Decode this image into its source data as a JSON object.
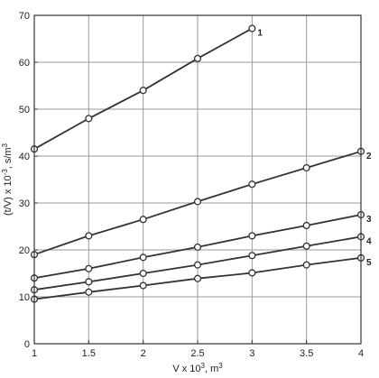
{
  "chart_data": {
    "type": "line",
    "xlabel_parts": {
      "base": "V x 10",
      "exp": "3",
      "unit": ", m",
      "unit_exp": "3"
    },
    "ylabel_parts": {
      "base": "(t/V) x 10",
      "exp": "-3",
      "unit": ", s/m",
      "unit_exp": "3"
    },
    "xlim": [
      1,
      4
    ],
    "ylim": [
      0,
      70
    ],
    "xticks": [
      "1",
      "1.5",
      "2",
      "2.5",
      "3",
      "3.5",
      "4"
    ],
    "yticks": [
      "0",
      "10",
      "20",
      "30",
      "40",
      "50",
      "60",
      "70"
    ],
    "grid": true,
    "series": [
      {
        "name": "1",
        "x": [
          1,
          1.5,
          2,
          2.5,
          3
        ],
        "y": [
          41.5,
          48,
          54,
          60.8,
          67.2
        ]
      },
      {
        "name": "2",
        "x": [
          1,
          1.5,
          2,
          2.5,
          3,
          3.5,
          4
        ],
        "y": [
          19,
          23,
          26.5,
          30.3,
          34,
          37.5,
          41
        ]
      },
      {
        "name": "3",
        "x": [
          1,
          1.5,
          2,
          2.5,
          3,
          3.5,
          4
        ],
        "y": [
          14,
          16,
          18.4,
          20.6,
          23,
          25.2,
          27.5
        ]
      },
      {
        "name": "4",
        "x": [
          1,
          1.5,
          2,
          2.5,
          3,
          3.5,
          4
        ],
        "y": [
          11.5,
          13.2,
          15,
          16.8,
          18.8,
          20.8,
          22.8
        ]
      },
      {
        "name": "5",
        "x": [
          1,
          1.5,
          2,
          2.5,
          3,
          3.5,
          4
        ],
        "y": [
          9.5,
          11,
          12.4,
          13.9,
          15.1,
          16.8,
          18.3
        ]
      }
    ]
  }
}
